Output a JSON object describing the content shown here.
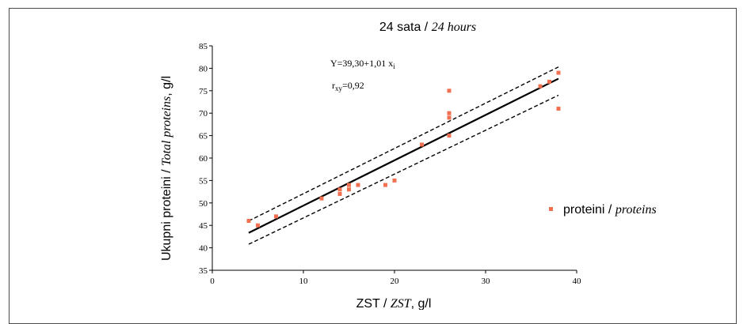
{
  "chart_data": {
    "type": "scatter",
    "title": {
      "plain": "24 sata / ",
      "italic": "24 hours"
    },
    "xlabel": {
      "plain": "ZST / ",
      "italic": "ZST",
      "unit": ", g/l"
    },
    "ylabel": {
      "plain": "Ukupni proteini / ",
      "italic": "Total proteins",
      "unit": ", g/l"
    },
    "xlim": [
      0,
      40
    ],
    "ylim": [
      35,
      85
    ],
    "x_ticks": [
      0,
      10,
      20,
      30,
      40
    ],
    "y_ticks": [
      35,
      40,
      45,
      50,
      55,
      60,
      65,
      70,
      75,
      80,
      85
    ],
    "legend": {
      "position": "right",
      "plain": "proteini / ",
      "italic": "proteins",
      "color": "#f07050"
    },
    "equation": {
      "text": "Y=39,30+1,01 x",
      "subscript": "i"
    },
    "correlation": {
      "prefix": "r",
      "subscript": "xy",
      "text": "=0,92"
    },
    "regression": {
      "intercept": 39.3,
      "slope": 1.01,
      "x_range": [
        4,
        38
      ]
    },
    "confidence_upper": [
      [
        4,
        46.0
      ],
      [
        38,
        80.3
      ]
    ],
    "confidence_lower": [
      [
        4,
        40.8
      ],
      [
        38,
        74.0
      ]
    ],
    "series": [
      {
        "color": "#f07050",
        "points": [
          [
            4,
            46
          ],
          [
            5,
            45
          ],
          [
            7,
            47
          ],
          [
            12,
            51
          ],
          [
            14,
            52
          ],
          [
            14,
            53
          ],
          [
            15,
            53
          ],
          [
            15,
            54
          ],
          [
            16,
            54
          ],
          [
            19,
            54
          ],
          [
            20,
            55
          ],
          [
            23,
            63
          ],
          [
            26,
            65
          ],
          [
            26,
            69
          ],
          [
            26,
            70
          ],
          [
            26,
            75
          ],
          [
            36,
            76
          ],
          [
            37,
            77
          ],
          [
            38,
            79
          ],
          [
            38,
            71
          ]
        ]
      }
    ]
  }
}
